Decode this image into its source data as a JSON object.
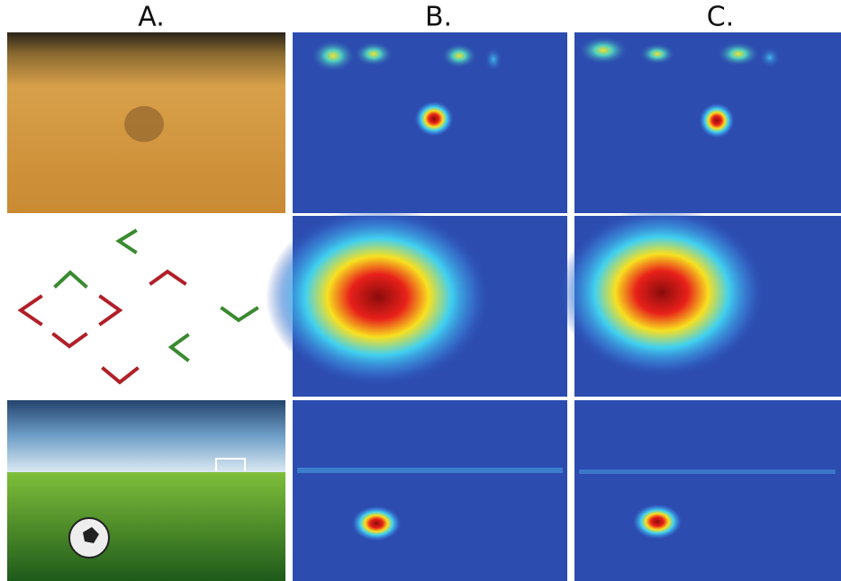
{
  "headers": [
    "A.",
    "B.",
    "C."
  ]
}
